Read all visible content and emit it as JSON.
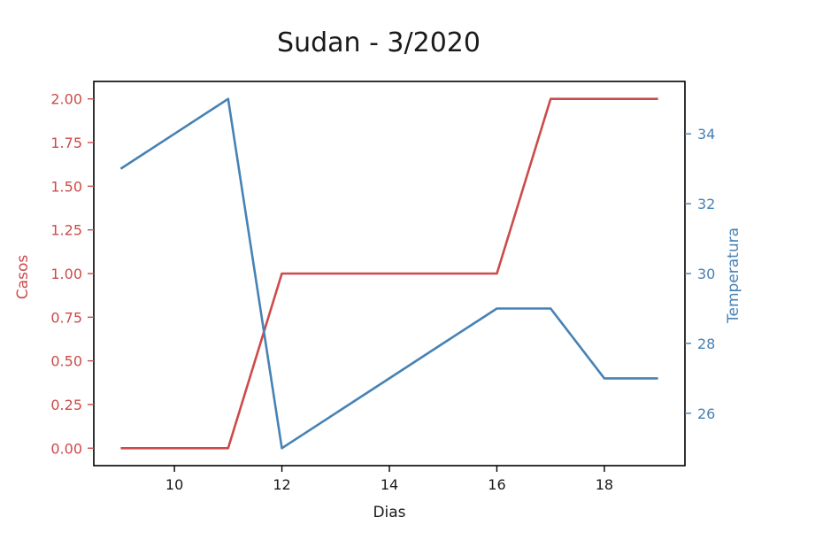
{
  "chart_data": {
    "type": "line",
    "title": "Sudan - 3/2020",
    "xlabel": "Dias",
    "xlim": [
      8.5,
      19.5
    ],
    "x_ticks": [
      10,
      12,
      14,
      16,
      18
    ],
    "x": [
      9,
      10,
      11,
      12,
      13,
      14,
      15,
      16,
      17,
      18,
      19
    ],
    "grid": false,
    "left_axis": {
      "label": "Casos",
      "color": "#cd4a4a",
      "ylim": [
        -0.1,
        2.1
      ],
      "ticks": [
        0.0,
        0.25,
        0.5,
        0.75,
        1.0,
        1.25,
        1.5,
        1.75,
        2.0
      ],
      "tick_labels": [
        "0.00",
        "0.25",
        "0.50",
        "0.75",
        "1.00",
        "1.25",
        "1.50",
        "1.75",
        "2.00"
      ]
    },
    "right_axis": {
      "label": "Temperatura",
      "color": "#4682b4",
      "ylim": [
        24.5,
        35.5
      ],
      "ticks": [
        26,
        28,
        30,
        32,
        34
      ],
      "tick_labels": [
        "26",
        "28",
        "30",
        "32",
        "34"
      ]
    },
    "series": [
      {
        "axis": "left",
        "color": "#cd4a4a",
        "values": [
          0,
          0,
          0,
          1,
          1,
          1,
          1,
          1,
          2,
          2,
          2
        ]
      },
      {
        "axis": "right",
        "color": "#4682b4",
        "values": [
          33,
          34,
          35,
          25,
          26,
          27,
          28,
          29,
          29,
          27,
          27
        ]
      }
    ]
  }
}
